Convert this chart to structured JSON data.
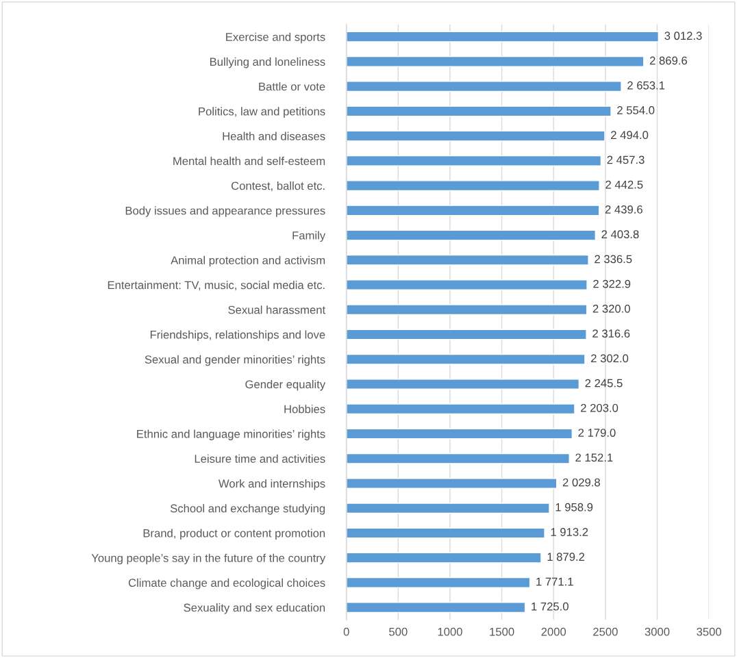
{
  "chart_data": {
    "type": "bar",
    "orientation": "horizontal",
    "categories": [
      "Exercise and sports",
      "Bullying and loneliness",
      "Battle or vote",
      "Politics, law and petitions",
      "Health and diseases",
      "Mental health and self-esteem",
      "Contest, ballot etc.",
      "Body issues and appearance pressures",
      "Family",
      "Animal protection and activism",
      "Entertainment: TV, music, social media etc.",
      "Sexual harassment",
      "Friendships, relationships and love",
      "Sexual and gender minorities’ rights",
      "Gender equality",
      "Hobbies",
      "Ethnic and language minorities’ rights",
      "Leisure time and activities",
      "Work and internships",
      "School and exchange studying",
      "Brand, product or content promotion",
      "Young people’s say in the future of the country",
      "Climate change and ecological choices",
      "Sexuality and sex education"
    ],
    "values": [
      3012.3,
      2869.6,
      2653.1,
      2554.0,
      2494.0,
      2457.3,
      2442.5,
      2439.6,
      2403.8,
      2336.5,
      2322.9,
      2320.0,
      2316.6,
      2302.0,
      2245.5,
      2203.0,
      2179.0,
      2152.1,
      2029.8,
      1958.9,
      1913.2,
      1879.2,
      1771.1,
      1725.0
    ],
    "value_labels": [
      "3 012.3",
      "2 869.6",
      "2 653.1",
      "2 554.0",
      "2 494.0",
      "2 457.3",
      "2 442.5",
      "2 439.6",
      "2 403.8",
      "2 336.5",
      "2 322.9",
      "2 320.0",
      "2 316.6",
      "2 302.0",
      "2 245.5",
      "2 203.0",
      "2 179.0",
      "2 152.1",
      "2 029.8",
      "1 958.9",
      "1 913.2",
      "1 879.2",
      "1 771.1",
      "1 725.0"
    ],
    "color": "#5b9bd5",
    "xlim": [
      0,
      3500
    ],
    "xticks": [
      0,
      500,
      1000,
      1500,
      2000,
      2500,
      3000,
      3500
    ],
    "grid": "x",
    "legend": false
  }
}
